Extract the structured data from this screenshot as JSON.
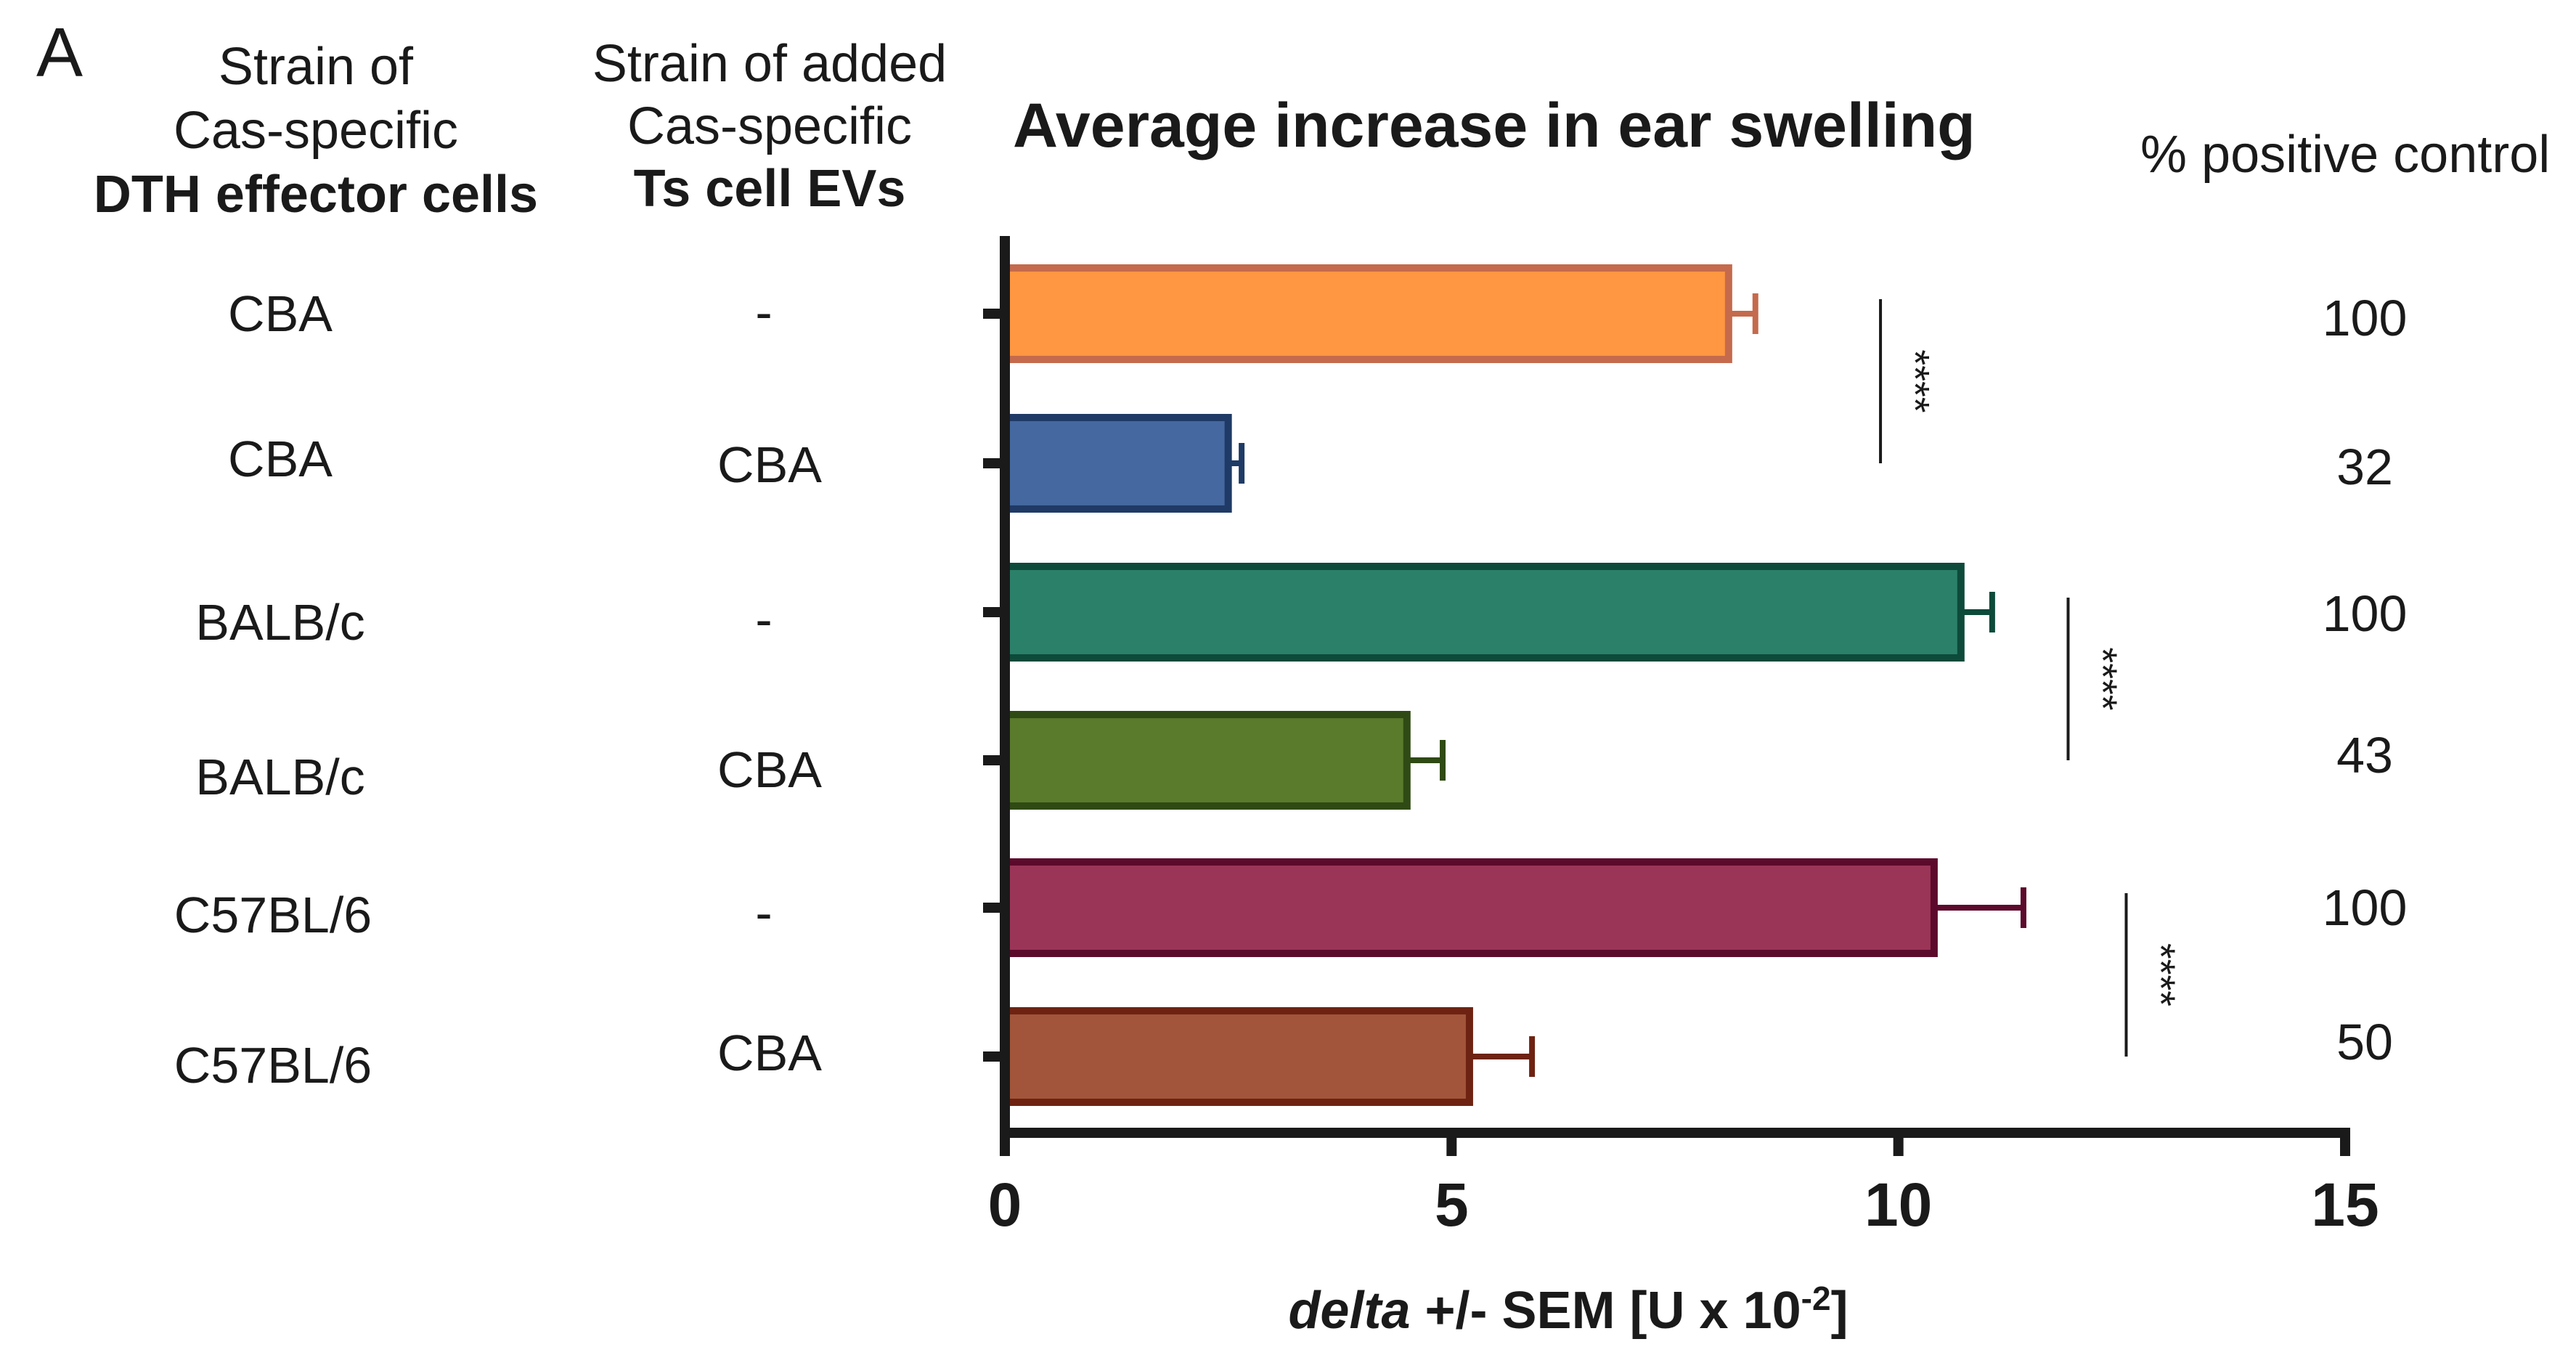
{
  "panel_label": "A",
  "columns": {
    "effector": {
      "line1": "Strain of",
      "line2": "Cas-specific",
      "line3": "DTH effector cells"
    },
    "ts": {
      "line1": "Strain of added",
      "line2": "Cas-specific",
      "line3": "Ts cell EVs"
    },
    "pct": {
      "label": "% positive control"
    }
  },
  "rows": [
    {
      "effector": "CBA",
      "ts": "-",
      "pct": "100"
    },
    {
      "effector": "CBA",
      "ts": "CBA",
      "pct": "32"
    },
    {
      "effector": "BALB/c",
      "ts": "-",
      "pct": "100"
    },
    {
      "effector": "BALB/c",
      "ts": "CBA",
      "pct": "43"
    },
    {
      "effector": "C57BL/6",
      "ts": "-",
      "pct": "100"
    },
    {
      "effector": "C57BL/6",
      "ts": "CBA",
      "pct": "50"
    }
  ],
  "chart_data": {
    "type": "bar",
    "orientation": "horizontal",
    "title": "Average increase in ear swelling",
    "xlabel": {
      "italic": "delta",
      "rest": " +/- SEM [U x 10",
      "sup": "-2",
      "end": "]"
    },
    "xlim": [
      0,
      15
    ],
    "xticks": [
      0,
      5,
      10,
      15
    ],
    "categories": [
      "CBA / -",
      "CBA / CBA",
      "BALB/c / -",
      "BALB/c / CBA",
      "C57BL/6 / -",
      "C57BL/6 / CBA"
    ],
    "values": [
      8.1,
      2.5,
      10.7,
      4.5,
      10.4,
      5.2
    ],
    "sem": [
      0.3,
      0.15,
      0.35,
      0.4,
      1.0,
      0.7
    ],
    "fill_colors": [
      "#FF9642",
      "#44689F",
      "#2B8069",
      "#5A7A2C",
      "#9B3558",
      "#A2553A"
    ],
    "edge_colors": [
      "#C56A4C",
      "#1F3A66",
      "#0D4A3A",
      "#2F4A14",
      "#5C0A2C",
      "#6E2312"
    ],
    "significance": [
      {
        "between": [
          0,
          1
        ],
        "label": "****",
        "x": 9.8
      },
      {
        "between": [
          2,
          3
        ],
        "label": "****",
        "x": 11.9
      },
      {
        "between": [
          4,
          5
        ],
        "label": "****",
        "x": 12.55
      }
    ]
  }
}
